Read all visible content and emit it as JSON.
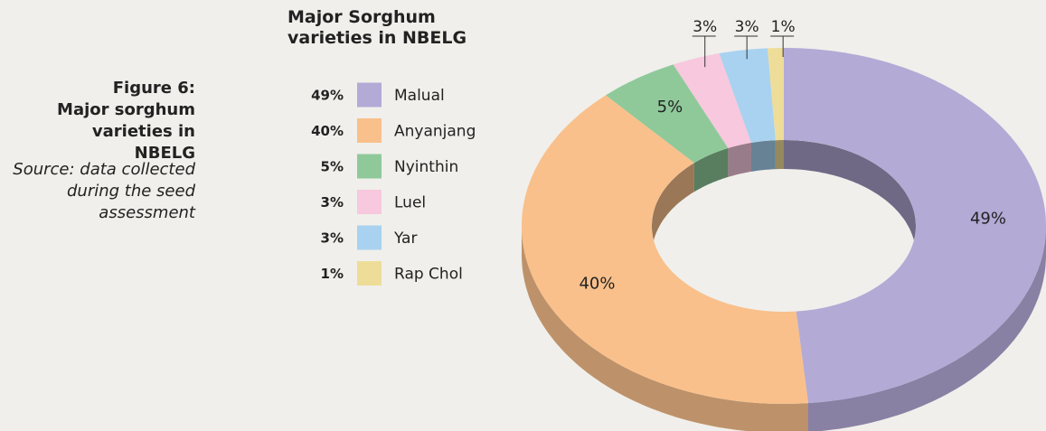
{
  "figure": {
    "label": "Figure 6:",
    "caption": "Major sorghum varieties in NBELG",
    "source": "Source: data collected during the seed assessment"
  },
  "chart_data": {
    "type": "donut3d",
    "title": "Major Sorghum varieties in NBELG",
    "categories": [
      "Malual",
      "Anyanjang",
      "Nyinthin",
      "Luel",
      "Yar",
      "Rap Chol"
    ],
    "values": [
      49,
      40,
      5,
      3,
      3,
      1
    ],
    "value_labels": [
      "49%",
      "40%",
      "5%",
      "3%",
      "3%",
      "1%"
    ],
    "colors": [
      "#b3aad6",
      "#f9c08b",
      "#8fc99a",
      "#f7c8de",
      "#a8d2f0",
      "#eedd99"
    ]
  }
}
